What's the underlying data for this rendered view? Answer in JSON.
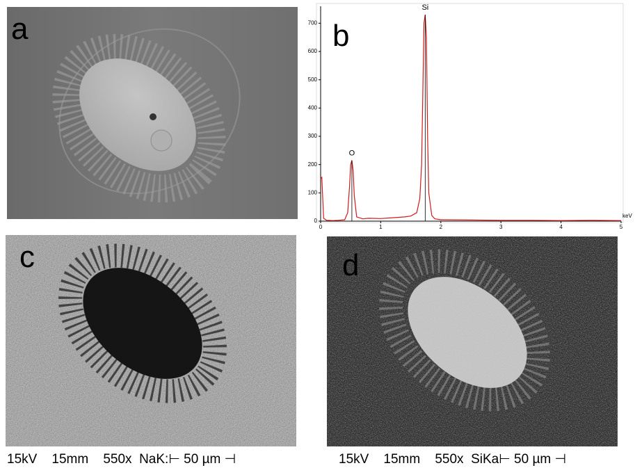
{
  "chart_data": {
    "type": "line",
    "panel_label": "b",
    "x_label": "keV",
    "x": [
      0,
      0.02,
      0.05,
      0.1,
      0.2,
      0.3,
      0.4,
      0.45,
      0.48,
      0.5,
      0.52,
      0.54,
      0.56,
      0.6,
      0.7,
      0.8,
      1.0,
      1.2,
      1.4,
      1.5,
      1.6,
      1.65,
      1.68,
      1.7,
      1.72,
      1.74,
      1.76,
      1.78,
      1.8,
      1.85,
      1.9,
      2.0,
      2.5,
      3.0,
      3.5,
      4.0,
      4.5,
      5.0
    ],
    "values": [
      150,
      155,
      10,
      3,
      2,
      3,
      5,
      30,
      120,
      200,
      215,
      180,
      90,
      15,
      8,
      10,
      9,
      12,
      15,
      18,
      30,
      80,
      200,
      450,
      700,
      730,
      650,
      300,
      100,
      20,
      8,
      5,
      4,
      3,
      3,
      2,
      3,
      2
    ],
    "color": "#d11a1a",
    "xlim": [
      0,
      5
    ],
    "xticks": [
      0,
      1,
      2,
      3,
      4,
      5
    ],
    "ylim": [
      0,
      760
    ],
    "yticks": [
      0,
      100,
      200,
      300,
      400,
      500,
      600,
      700
    ],
    "annotations": [
      {
        "text": "O",
        "x": 0.52,
        "y": 215
      },
      {
        "text": "Si",
        "x": 1.74,
        "y": 730
      }
    ]
  },
  "panels": {
    "a": {
      "label": "a"
    },
    "c": {
      "label": "c",
      "caption": "15kV    15mm    550x  NaK:⊢ 50 µm ⊣"
    },
    "d": {
      "label": "d",
      "caption": "15kV    15mm    550x  SiKa⊢ 50 µm ⊣"
    }
  }
}
